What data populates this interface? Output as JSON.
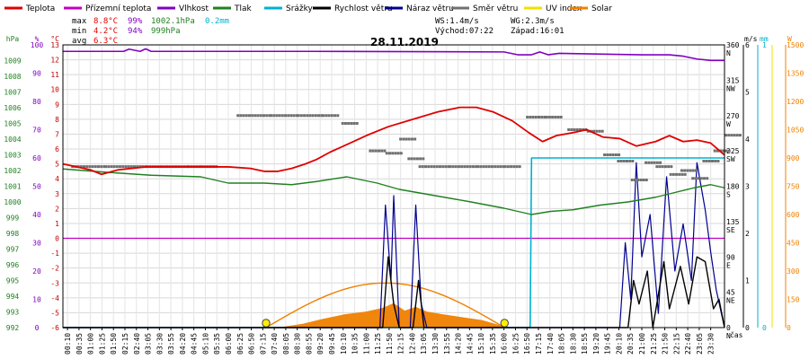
{
  "colors": {
    "teplota": "#e00000",
    "pocit": "#c000c0",
    "vlhkost": "#8000c0",
    "tlak": "#208020",
    "srazky": "#00b0d0",
    "rychlost": "#000000",
    "naraz": "#000090",
    "smer": "#707070",
    "uv": "#f0e000",
    "solar": "#f08000",
    "ref": "#c000c0"
  },
  "legend": [
    {
      "label": "Teplota",
      "color": "#e00000"
    },
    {
      "label": "Přízemní teplota",
      "color": "#c000c0"
    },
    {
      "label": "Vlhkost",
      "color": "#8000c0"
    },
    {
      "label": "Tlak",
      "color": "#208020"
    },
    {
      "label": "Srážky",
      "color": "#00b0d0"
    },
    {
      "label": "Rychlost větru",
      "color": "#000000"
    },
    {
      "label": "Náraz větru",
      "color": "#000090"
    },
    {
      "label": "Směr větru",
      "color": "#707070"
    },
    {
      "label": "UV index",
      "color": "#f0e000"
    },
    {
      "label": "Solar",
      "color": "#f08000"
    }
  ],
  "stats": {
    "max_label": "max",
    "min_label": "min",
    "avg_label": "avg",
    "max_temp": "8.8°C",
    "max_hum": "99%",
    "max_press": "1002.1hPa",
    "max_rain": "0.2mm",
    "min_temp": "4.2°C",
    "min_hum": "94%",
    "min_press": "999hPa",
    "avg_temp": "6.3°C",
    "ws": "WS:1.4m/s",
    "wg": "WG:2.3m/s",
    "sunrise": "Východ:07:22",
    "sunset": "Západ:16:01"
  },
  "chart_data": {
    "type": "line",
    "title": "28.11.2019",
    "x_unit_label": "čas",
    "x_range": [
      "00:00",
      "24:00"
    ],
    "x_tick_labels": [
      "00:10",
      "00:35",
      "01:00",
      "01:25",
      "01:50",
      "02:15",
      "02:40",
      "03:05",
      "03:30",
      "03:55",
      "04:20",
      "04:45",
      "05:10",
      "05:35",
      "06:00",
      "06:25",
      "06:50",
      "07:15",
      "07:40",
      "08:05",
      "08:30",
      "08:55",
      "09:20",
      "09:45",
      "10:10",
      "10:35",
      "11:00",
      "11:25",
      "11:50",
      "12:15",
      "12:40",
      "13:05",
      "13:30",
      "13:55",
      "14:20",
      "14:45",
      "15:10",
      "15:35",
      "16:00",
      "16:25",
      "16:50",
      "17:15",
      "17:40",
      "18:05",
      "18:30",
      "18:55",
      "19:20",
      "19:45",
      "20:10",
      "20:35",
      "21:00",
      "21:25",
      "21:50",
      "22:15",
      "22:40",
      "23:05",
      "23:30"
    ],
    "axes": {
      "pressure": {
        "label": "hPa",
        "range": [
          992,
          1010
        ],
        "ticks": [
          "992",
          "993",
          "994",
          "995",
          "996",
          "997",
          "998",
          "999",
          "1000",
          "1001",
          "1002",
          "1003",
          "1004",
          "1005",
          "1006",
          "1007",
          "1008",
          "1009"
        ]
      },
      "humidity": {
        "label": "%",
        "range": [
          0,
          100
        ],
        "ticks": [
          "0",
          "10",
          "20",
          "30",
          "40",
          "50",
          "60",
          "70",
          "80",
          "90",
          "100"
        ]
      },
      "temperature": {
        "label": "°C",
        "range": [
          -6,
          13
        ],
        "ticks": [
          "-6",
          "-5",
          "-4",
          "-3",
          "-2",
          "-1",
          "0",
          "1",
          "2",
          "3",
          "4",
          "5",
          "6",
          "7",
          "8",
          "9",
          "10",
          "11",
          "12",
          "13"
        ]
      },
      "direction": {
        "range": [
          0,
          360
        ],
        "ticks": [
          {
            "v": "0",
            "d": "N"
          },
          {
            "v": "45",
            "d": "NE"
          },
          {
            "v": "90",
            "d": "E"
          },
          {
            "v": "135",
            "d": "SE"
          },
          {
            "v": "180",
            "d": "S"
          },
          {
            "v": "225",
            "d": "SW"
          },
          {
            "v": "270",
            "d": "W"
          },
          {
            "v": "315",
            "d": "NW"
          },
          {
            "v": "360",
            "d": "N"
          }
        ]
      },
      "wind": {
        "label": "m/s",
        "range": [
          0,
          6
        ],
        "ticks": [
          "0",
          "1",
          "2",
          "3",
          "4",
          "5",
          "6"
        ]
      },
      "rain": {
        "label": "mm",
        "range": [
          0,
          1
        ],
        "ticks": [
          "0",
          "1"
        ]
      },
      "solar": {
        "label": "W",
        "range": [
          0,
          1500
        ],
        "ticks": [
          "0",
          "150",
          "300",
          "450",
          "600",
          "750",
          "900",
          "1050",
          "1200",
          "1350",
          "1500"
        ]
      }
    },
    "series": [
      {
        "name": "Teplota",
        "axis": "temperature",
        "points": [
          [
            0,
            5.0
          ],
          [
            1,
            4.6
          ],
          [
            1.4,
            4.3
          ],
          [
            2,
            4.6
          ],
          [
            3,
            4.8
          ],
          [
            4,
            4.8
          ],
          [
            5,
            4.8
          ],
          [
            6,
            4.8
          ],
          [
            6.8,
            4.7
          ],
          [
            7.3,
            4.5
          ],
          [
            7.8,
            4.5
          ],
          [
            8.3,
            4.7
          ],
          [
            8.8,
            5.0
          ],
          [
            9.2,
            5.3
          ],
          [
            9.7,
            5.8
          ],
          [
            10.3,
            6.3
          ],
          [
            11,
            6.9
          ],
          [
            11.8,
            7.5
          ],
          [
            12.7,
            8.0
          ],
          [
            13.6,
            8.5
          ],
          [
            14.4,
            8.8
          ],
          [
            15.0,
            8.8
          ],
          [
            15.6,
            8.5
          ],
          [
            16.3,
            7.9
          ],
          [
            16.9,
            7.1
          ],
          [
            17.4,
            6.5
          ],
          [
            17.9,
            6.9
          ],
          [
            18.5,
            7.1
          ],
          [
            19.0,
            7.3
          ],
          [
            19.6,
            6.8
          ],
          [
            20.2,
            6.7
          ],
          [
            20.8,
            6.2
          ],
          [
            21.5,
            6.5
          ],
          [
            22.0,
            6.9
          ],
          [
            22.5,
            6.5
          ],
          [
            23.0,
            6.6
          ],
          [
            23.5,
            6.4
          ],
          [
            24.0,
            5.6
          ]
        ]
      },
      {
        "name": "Vlhkost",
        "axis": "humidity",
        "points": [
          [
            0,
            97.7
          ],
          [
            2.2,
            97.7
          ],
          [
            2.4,
            98.5
          ],
          [
            2.8,
            97.7
          ],
          [
            3.0,
            98.6
          ],
          [
            3.2,
            97.7
          ],
          [
            8,
            97.7
          ],
          [
            9,
            97.7
          ],
          [
            16,
            97.5
          ],
          [
            16.5,
            96.5
          ],
          [
            17,
            96.5
          ],
          [
            17.3,
            97.5
          ],
          [
            17.6,
            96.5
          ],
          [
            18,
            97.0
          ],
          [
            21,
            96.5
          ],
          [
            22,
            96.5
          ],
          [
            22.5,
            96.0
          ],
          [
            23,
            95.0
          ],
          [
            23.5,
            94.5
          ],
          [
            24.0,
            94.5
          ]
        ]
      },
      {
        "name": "Tlak",
        "axis": "pressure",
        "points": [
          [
            0,
            1002.1
          ],
          [
            1.5,
            1001.9
          ],
          [
            3.2,
            1001.7
          ],
          [
            5,
            1001.6
          ],
          [
            6,
            1001.2
          ],
          [
            7.3,
            1001.2
          ],
          [
            8.3,
            1001.1
          ],
          [
            9.2,
            1001.3
          ],
          [
            10.3,
            1001.6
          ],
          [
            11.4,
            1001.2
          ],
          [
            12.2,
            1000.8
          ],
          [
            13.5,
            1000.4
          ],
          [
            14.8,
            1000.0
          ],
          [
            16,
            999.6
          ],
          [
            17,
            999.2
          ],
          [
            17.7,
            999.4
          ],
          [
            18.5,
            999.5
          ],
          [
            19.5,
            999.8
          ],
          [
            20.5,
            1000.0
          ],
          [
            21.5,
            1000.3
          ],
          [
            22.2,
            1000.6
          ],
          [
            22.9,
            1000.9
          ],
          [
            23.5,
            1001.1
          ],
          [
            24.0,
            1000.9
          ]
        ]
      },
      {
        "name": "Srážky",
        "axis": "rain",
        "points": [
          [
            0,
            0
          ],
          [
            16.95,
            0
          ],
          [
            17.0,
            0.6
          ],
          [
            24.0,
            0.6
          ]
        ]
      },
      {
        "name": "Rychlost větru",
        "axis": "wind",
        "points": [
          [
            0,
            0
          ],
          [
            11.6,
            0
          ],
          [
            11.8,
            1.5
          ],
          [
            12.0,
            0.5
          ],
          [
            12.2,
            0
          ],
          [
            12.7,
            0
          ],
          [
            12.9,
            1.0
          ],
          [
            13.1,
            0
          ],
          [
            20.5,
            0
          ],
          [
            20.7,
            1.0
          ],
          [
            20.9,
            0.5
          ],
          [
            21.2,
            1.2
          ],
          [
            21.4,
            0
          ],
          [
            21.8,
            1.4
          ],
          [
            22.0,
            0.4
          ],
          [
            22.4,
            1.3
          ],
          [
            22.7,
            0.5
          ],
          [
            23.0,
            1.5
          ],
          [
            23.3,
            1.4
          ],
          [
            23.6,
            0.4
          ],
          [
            23.8,
            0.6
          ],
          [
            24.0,
            0
          ]
        ]
      },
      {
        "name": "Náraz větru",
        "axis": "wind",
        "points": [
          [
            0,
            0
          ],
          [
            11.5,
            0
          ],
          [
            11.7,
            2.6
          ],
          [
            11.9,
            1.0
          ],
          [
            12.0,
            2.8
          ],
          [
            12.2,
            0
          ],
          [
            12.6,
            0
          ],
          [
            12.8,
            2.6
          ],
          [
            13.0,
            0.5
          ],
          [
            13.2,
            0
          ],
          [
            20.2,
            0
          ],
          [
            20.4,
            1.8
          ],
          [
            20.6,
            0.6
          ],
          [
            20.8,
            3.5
          ],
          [
            21.0,
            1.5
          ],
          [
            21.3,
            2.4
          ],
          [
            21.6,
            0.3
          ],
          [
            21.9,
            3.2
          ],
          [
            22.2,
            1.2
          ],
          [
            22.5,
            2.2
          ],
          [
            22.8,
            1.0
          ],
          [
            23.0,
            3.5
          ],
          [
            23.3,
            2.5
          ],
          [
            23.5,
            1.6
          ],
          [
            23.7,
            0.8
          ],
          [
            24.0,
            0
          ]
        ]
      },
      {
        "name": "Solar",
        "axis": "solar",
        "points": [
          [
            7.4,
            0
          ],
          [
            8,
            5
          ],
          [
            8.7,
            20
          ],
          [
            9.4,
            45
          ],
          [
            10.2,
            70
          ],
          [
            11,
            85
          ],
          [
            11.6,
            105
          ],
          [
            12.0,
            130
          ],
          [
            12.4,
            90
          ],
          [
            12.8,
            110
          ],
          [
            13.2,
            85
          ],
          [
            13.8,
            70
          ],
          [
            14.5,
            55
          ],
          [
            15.2,
            40
          ],
          [
            15.8,
            15
          ],
          [
            16.1,
            0
          ]
        ]
      }
    ],
    "wind_direction": [
      [
        0.3,
        205
      ],
      [
        1.5,
        205
      ],
      [
        3,
        205
      ],
      [
        4.5,
        205
      ],
      [
        5,
        205
      ],
      [
        6.3,
        270
      ],
      [
        7.5,
        270
      ],
      [
        8.5,
        270
      ],
      [
        9.4,
        270
      ],
      [
        10.1,
        260
      ],
      [
        11.1,
        225
      ],
      [
        11.7,
        222
      ],
      [
        12.2,
        240
      ],
      [
        12.5,
        215
      ],
      [
        12.9,
        205
      ],
      [
        14,
        205
      ],
      [
        15,
        205
      ],
      [
        16,
        205
      ],
      [
        16.8,
        268
      ],
      [
        17.5,
        268
      ],
      [
        18.3,
        252
      ],
      [
        19,
        250
      ],
      [
        19.6,
        220
      ],
      [
        20.1,
        212
      ],
      [
        20.6,
        188
      ],
      [
        21.1,
        210
      ],
      [
        21.5,
        205
      ],
      [
        22.0,
        195
      ],
      [
        22.4,
        200
      ],
      [
        22.8,
        190
      ],
      [
        23.2,
        212
      ],
      [
        23.6,
        225
      ],
      [
        24.0,
        245
      ]
    ],
    "reference_lines": [
      {
        "axis": "temperature",
        "value": 0
      }
    ],
    "sun_markers": [
      7.37,
      16.02
    ],
    "grid": true,
    "legend_placement": "top"
  }
}
